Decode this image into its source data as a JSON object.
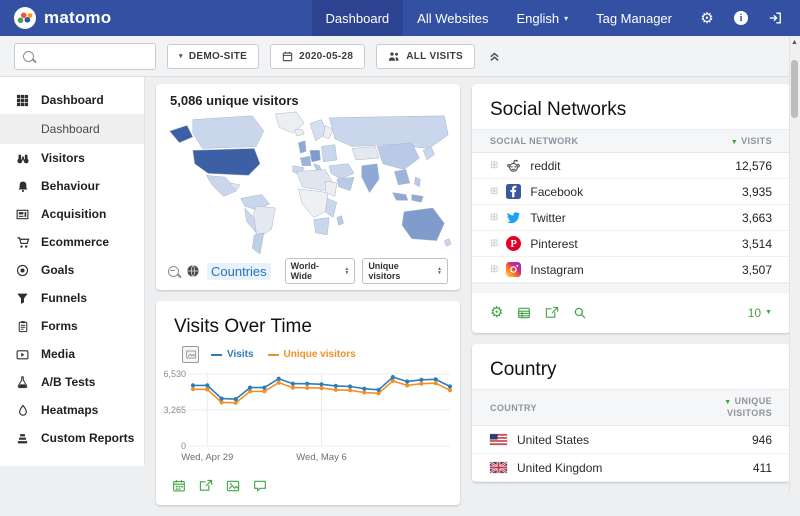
{
  "colors": {
    "header_bg": "#3450a3",
    "accent_green": "#42a445",
    "link_blue": "#2573c2",
    "chart_blue": "#2e7cb8",
    "chart_orange": "#f09026"
  },
  "header": {
    "brand": "matomo",
    "nav": [
      {
        "label": "Dashboard",
        "active": true,
        "caret": false
      },
      {
        "label": "All Websites",
        "active": false,
        "caret": false
      },
      {
        "label": "English",
        "active": false,
        "caret": true
      },
      {
        "label": "Tag Manager",
        "active": false,
        "caret": false
      }
    ]
  },
  "toolbar": {
    "search_value": "",
    "site": "DEMO-SITE",
    "date": "2020-05-28",
    "segment": "ALL VISITS"
  },
  "sidebar": {
    "items": [
      {
        "label": "Dashboard",
        "icon": "dashboard",
        "active": true,
        "sub": false,
        "selected": false
      },
      {
        "label": "Dashboard",
        "icon": "",
        "active": false,
        "sub": true,
        "selected": true
      },
      {
        "label": "Visitors",
        "icon": "visitors",
        "active": false,
        "sub": false,
        "selected": false
      },
      {
        "label": "Behaviour",
        "icon": "behaviour",
        "active": false,
        "sub": false,
        "selected": false
      },
      {
        "label": "Acquisition",
        "icon": "acquisition",
        "active": false,
        "sub": false,
        "selected": false
      },
      {
        "label": "Ecommerce",
        "icon": "ecommerce",
        "active": false,
        "sub": false,
        "selected": false
      },
      {
        "label": "Goals",
        "icon": "goals",
        "active": false,
        "sub": false,
        "selected": false
      },
      {
        "label": "Funnels",
        "icon": "funnels",
        "active": false,
        "sub": false,
        "selected": false
      },
      {
        "label": "Forms",
        "icon": "forms",
        "active": false,
        "sub": false,
        "selected": false
      },
      {
        "label": "Media",
        "icon": "media",
        "active": false,
        "sub": false,
        "selected": false
      },
      {
        "label": "A/B Tests",
        "icon": "ab_tests",
        "active": false,
        "sub": false,
        "selected": false
      },
      {
        "label": "Heatmaps",
        "icon": "heatmaps",
        "active": false,
        "sub": false,
        "selected": false
      },
      {
        "label": "Custom Reports",
        "icon": "custom_reports",
        "active": false,
        "sub": false,
        "selected": false
      }
    ]
  },
  "map_widget": {
    "title": "5,086 unique visitors",
    "link": "Countries",
    "region": "World-Wide",
    "metric": "Unique visitors"
  },
  "visits_widget": {
    "title": "Visits Over Time",
    "footer_icons": [
      "calendar",
      "export",
      "image",
      "annotation"
    ]
  },
  "chart_data": {
    "type": "line",
    "title": "Visits Over Time",
    "ylim": [
      0,
      6530
    ],
    "y_ticks": [
      0,
      3265,
      6530
    ],
    "y_tick_labels": [
      "0",
      "3,265",
      "6,530"
    ],
    "x_tick_labels": [
      "Wed, Apr 29",
      "Wed, May 6"
    ],
    "x_tick_indices": [
      1,
      9
    ],
    "grid": true,
    "legend_position": "top",
    "series": [
      {
        "name": "Visits",
        "color": "#2e7cb8",
        "values": [
          5500,
          5500,
          4300,
          4250,
          5300,
          5300,
          6100,
          5650,
          5650,
          5600,
          5450,
          5400,
          5200,
          5100,
          6250,
          5850,
          6000,
          6050,
          5400
        ]
      },
      {
        "name": "Unique visitors",
        "color": "#f09026",
        "values": [
          5150,
          5130,
          3950,
          3920,
          4950,
          4960,
          5750,
          5300,
          5280,
          5250,
          5100,
          5050,
          4850,
          4780,
          5900,
          5500,
          5650,
          5700,
          5050
        ]
      }
    ]
  },
  "social_widget": {
    "title": "Social Networks",
    "col1": "SOCIAL NETWORK",
    "col2": "VISITS",
    "rows": [
      {
        "icon": "reddit",
        "name": "reddit",
        "value": "12,576"
      },
      {
        "icon": "facebook",
        "name": "Facebook",
        "value": "3,935"
      },
      {
        "icon": "twitter",
        "name": "Twitter",
        "value": "3,663"
      },
      {
        "icon": "pinterest",
        "name": "Pinterest",
        "value": "3,514"
      },
      {
        "icon": "instagram",
        "name": "Instagram",
        "value": "3,507"
      }
    ],
    "footer_icons": [
      "gear",
      "table",
      "export",
      "search"
    ],
    "page_size": "10"
  },
  "country_widget": {
    "title": "Country",
    "col1": "COUNTRY",
    "col2": "UNIQUE VISITORS",
    "rows": [
      {
        "flag": "us",
        "name": "United States",
        "value": "946"
      },
      {
        "flag": "gb",
        "name": "United Kingdom",
        "value": "411"
      }
    ]
  }
}
